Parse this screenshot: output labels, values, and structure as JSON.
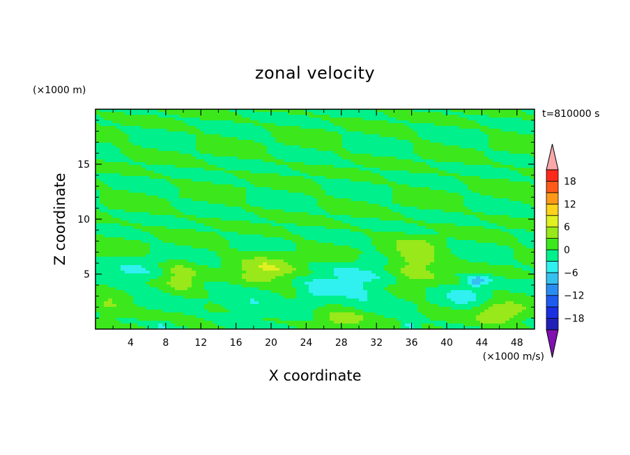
{
  "chart_data": {
    "type": "heatmap",
    "title": "zonal velocity",
    "xlabel": "X coordinate",
    "ylabel": "Z coordinate",
    "x_unit": "(×1000 m)",
    "y_unit": "(×1000 m)",
    "time_label": "t=810000 s",
    "colorbar_unit": "(×1000 m/s)",
    "xlim": [
      0,
      50
    ],
    "ylim": [
      0,
      20
    ],
    "x_ticks": [
      4,
      8,
      12,
      16,
      20,
      24,
      28,
      32,
      36,
      40,
      44,
      48
    ],
    "y_ticks": [
      5,
      10,
      15
    ],
    "colorbar": {
      "levels": [
        -21,
        -18,
        -15,
        -12,
        -9,
        -6,
        -3,
        0,
        3,
        6,
        9,
        12,
        15,
        18,
        21
      ],
      "tick_labels": [
        -18,
        -12,
        -6,
        0,
        6,
        12,
        18
      ],
      "colors": [
        "#5a10a0",
        "#2020b8",
        "#1a30e0",
        "#1e5cf0",
        "#2a8cf0",
        "#35c0f0",
        "#30f0f0",
        "#00f08c",
        "#3ce81c",
        "#98e81a",
        "#e0f020",
        "#ffd21c",
        "#ff9a18",
        "#ff5a1a",
        "#ff2a1a",
        "#e81010"
      ],
      "under_color": "#8010b0",
      "over_color": "#f8a8a8"
    },
    "background_value": 0,
    "features": [
      {
        "x": 19.5,
        "z": 5.3,
        "value": 5.5,
        "sx": 3.4,
        "sz": 1.4
      },
      {
        "x": 36.5,
        "z": 6.1,
        "value": 5.5,
        "sx": 2.8,
        "sz": 1.7
      },
      {
        "x": 9.8,
        "z": 4.7,
        "value": 4.5,
        "sx": 1.8,
        "sz": 1.4
      },
      {
        "x": 28.0,
        "z": 1.0,
        "value": 5.5,
        "sx": 3.0,
        "sz": 0.9
      },
      {
        "x": 46.0,
        "z": 1.4,
        "value": 5.5,
        "sx": 2.8,
        "sz": 1.1
      },
      {
        "x": 1.5,
        "z": 2.0,
        "value": 3.5,
        "sx": 1.8,
        "sz": 1.0
      },
      {
        "x": 43.5,
        "z": 4.4,
        "value": -8.5,
        "sx": 1.4,
        "sz": 0.45
      },
      {
        "x": 29.5,
        "z": 4.0,
        "value": -4.5,
        "sx": 3.8,
        "sz": 1.8
      },
      {
        "x": 25.0,
        "z": 3.2,
        "value": -3.5,
        "sx": 2.0,
        "sz": 1.2
      },
      {
        "x": 35.8,
        "z": 0.3,
        "value": -5.5,
        "sx": 1.0,
        "sz": 0.5
      },
      {
        "x": 17.5,
        "z": 2.2,
        "value": -3.5,
        "sx": 3.2,
        "sz": 1.0
      },
      {
        "x": 4.5,
        "z": 5.0,
        "value": -3.0,
        "sx": 2.5,
        "sz": 1.3
      },
      {
        "x": 42.0,
        "z": 3.0,
        "value": -3.5,
        "sx": 2.2,
        "sz": 1.0
      },
      {
        "x": 7.5,
        "z": 0.3,
        "value": -3.5,
        "sx": 1.2,
        "sz": 0.5
      }
    ]
  }
}
